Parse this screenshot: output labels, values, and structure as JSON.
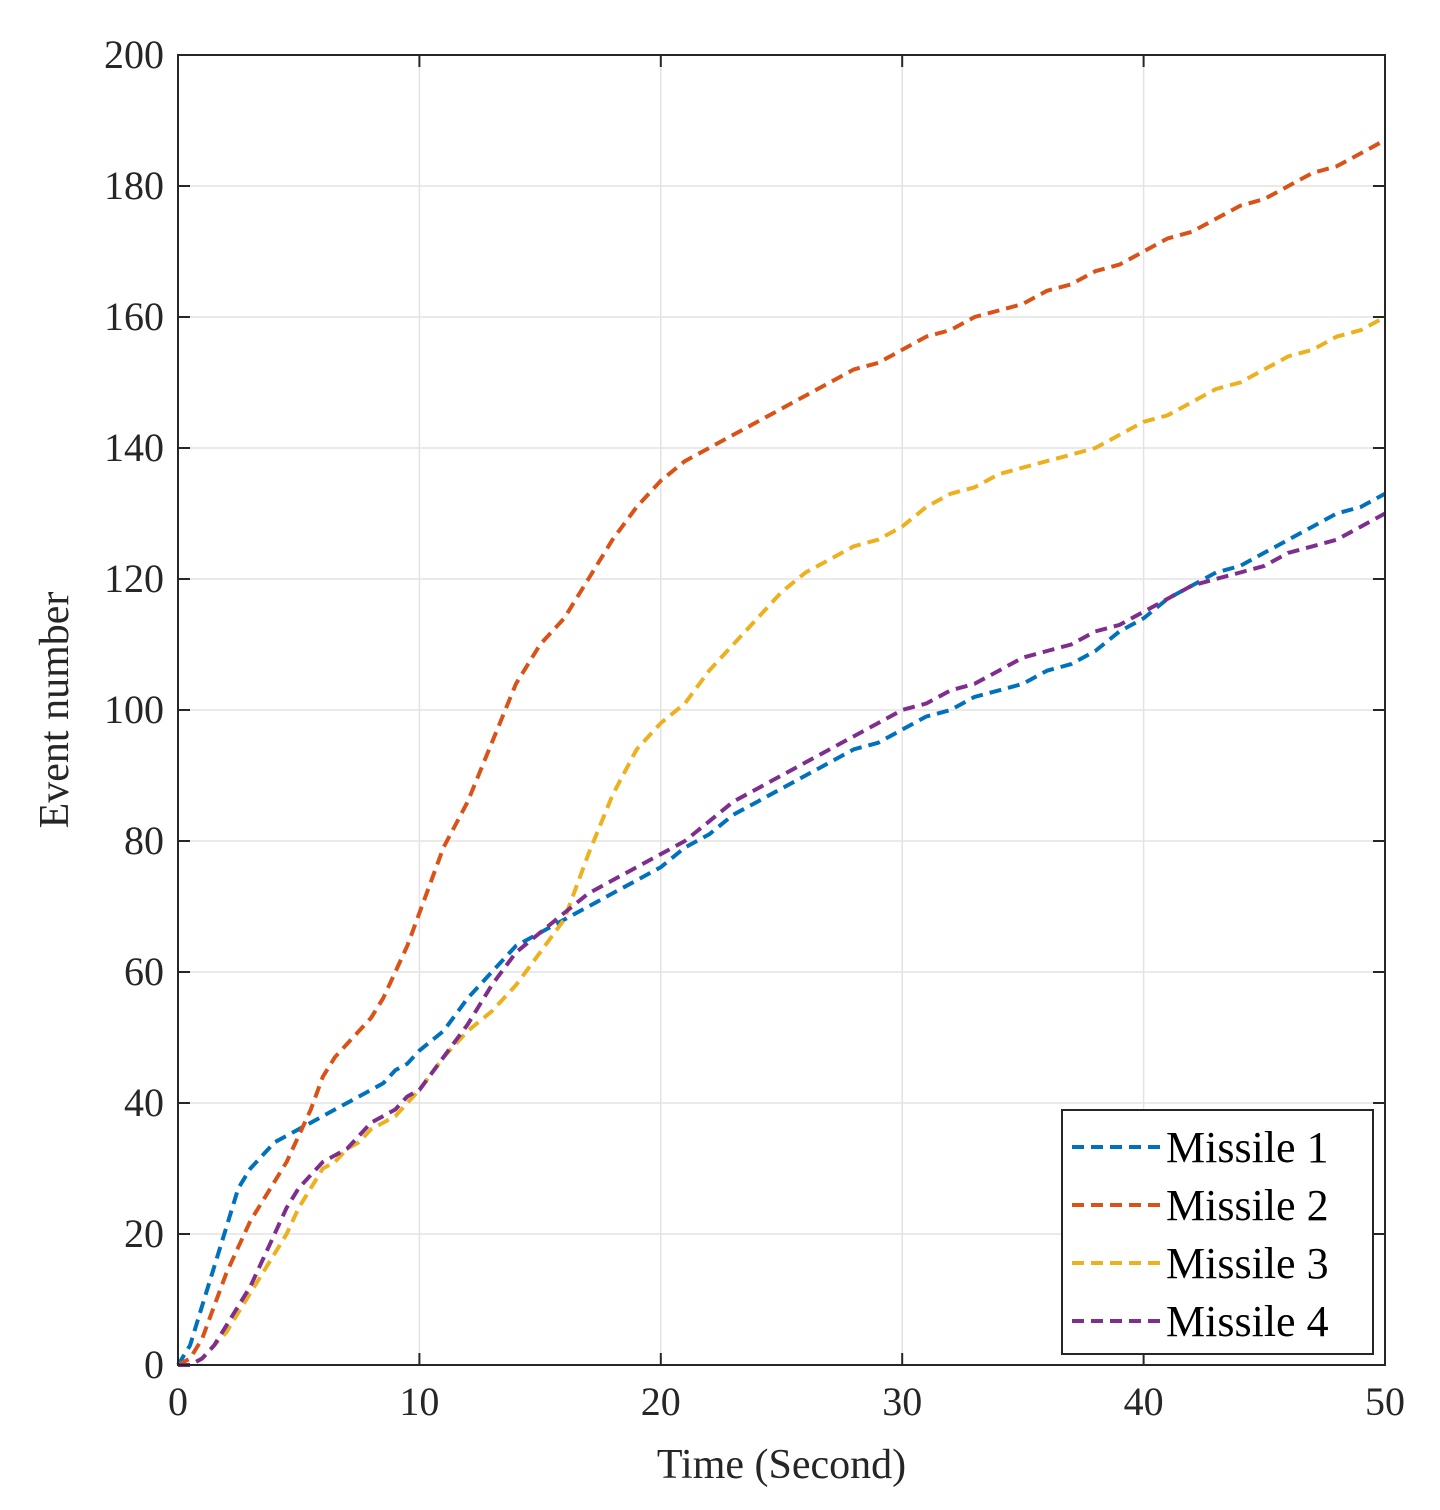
{
  "chart_data": {
    "type": "line",
    "title": "",
    "xlabel": "Time (Second)",
    "ylabel": "Event number",
    "xlim": [
      0,
      50
    ],
    "ylim": [
      0,
      200
    ],
    "xticks": [
      0,
      10,
      20,
      30,
      40,
      50
    ],
    "yticks": [
      0,
      20,
      40,
      60,
      80,
      100,
      120,
      140,
      160,
      180,
      200
    ],
    "grid": true,
    "legend_position": "bottom-right",
    "line_style": "dashed",
    "series": [
      {
        "name": "Missile 1",
        "color": "#0072BD",
        "x": [
          0,
          0.5,
          1,
          1.5,
          2,
          2.5,
          3,
          3.5,
          4,
          4.5,
          5,
          5.5,
          6,
          6.5,
          7,
          7.5,
          8,
          8.5,
          9,
          9.5,
          10,
          11,
          12,
          13,
          14,
          15,
          16,
          17,
          18,
          19,
          20,
          21,
          22,
          23,
          24,
          25,
          26,
          27,
          28,
          29,
          30,
          31,
          32,
          33,
          34,
          35,
          36,
          37,
          38,
          39,
          40,
          41,
          42,
          43,
          44,
          45,
          46,
          47,
          48,
          49,
          50
        ],
        "y": [
          0,
          3,
          9,
          15,
          21,
          27,
          30,
          32,
          34,
          35,
          36,
          37,
          38,
          39,
          40,
          41,
          42,
          43,
          45,
          46,
          48,
          51,
          56,
          60,
          64,
          66,
          68,
          70,
          72,
          74,
          76,
          79,
          81,
          84,
          86,
          88,
          90,
          92,
          94,
          95,
          97,
          99,
          100,
          102,
          103,
          104,
          106,
          107,
          109,
          112,
          114,
          117,
          119,
          121,
          122,
          124,
          126,
          128,
          130,
          131,
          133
        ]
      },
      {
        "name": "Missile 2",
        "color": "#D95319",
        "x": [
          0,
          0.5,
          1,
          1.5,
          2,
          2.5,
          3,
          3.5,
          4,
          4.5,
          5,
          5.5,
          6,
          6.5,
          7,
          7.5,
          8,
          8.5,
          9,
          9.5,
          10,
          11,
          12,
          13,
          14,
          15,
          16,
          17,
          18,
          19,
          20,
          21,
          22,
          23,
          24,
          25,
          26,
          27,
          28,
          29,
          30,
          31,
          32,
          33,
          34,
          35,
          36,
          37,
          38,
          39,
          40,
          41,
          42,
          43,
          44,
          45,
          46,
          47,
          48,
          49,
          50
        ],
        "y": [
          0,
          1,
          4,
          9,
          14,
          18,
          22,
          25,
          28,
          31,
          35,
          39,
          44,
          47,
          49,
          51,
          53,
          56,
          60,
          64,
          69,
          79,
          86,
          95,
          104,
          110,
          114,
          120,
          126,
          131,
          135,
          138,
          140,
          142,
          144,
          146,
          148,
          150,
          152,
          153,
          155,
          157,
          158,
          160,
          161,
          162,
          164,
          165,
          167,
          168,
          170,
          172,
          173,
          175,
          177,
          178,
          180,
          182,
          183,
          185,
          187
        ]
      },
      {
        "name": "Missile 3",
        "color": "#EDB120",
        "x": [
          0,
          0.5,
          1,
          1.5,
          2,
          2.5,
          3,
          3.5,
          4,
          4.5,
          5,
          5.5,
          6,
          6.5,
          7,
          7.5,
          8,
          8.5,
          9,
          9.5,
          10,
          11,
          12,
          13,
          14,
          15,
          16,
          17,
          18,
          19,
          20,
          21,
          22,
          23,
          24,
          25,
          26,
          27,
          28,
          29,
          30,
          31,
          32,
          33,
          34,
          35,
          36,
          37,
          38,
          39,
          40,
          41,
          42,
          43,
          44,
          45,
          46,
          47,
          48,
          49,
          50
        ],
        "y": [
          0,
          0,
          1,
          3,
          5,
          8,
          11,
          14,
          17,
          20,
          24,
          27,
          30,
          31,
          33,
          34,
          36,
          37,
          38,
          40,
          42,
          47,
          51,
          54,
          58,
          63,
          68,
          78,
          87,
          94,
          98,
          101,
          106,
          110,
          114,
          118,
          121,
          123,
          125,
          126,
          128,
          131,
          133,
          134,
          136,
          137,
          138,
          139,
          140,
          142,
          144,
          145,
          147,
          149,
          150,
          152,
          154,
          155,
          157,
          158,
          160
        ]
      },
      {
        "name": "Missile 4",
        "color": "#7E2F8E",
        "x": [
          0,
          0.5,
          1,
          1.5,
          2,
          2.5,
          3,
          3.5,
          4,
          4.5,
          5,
          5.5,
          6,
          6.5,
          7,
          7.5,
          8,
          8.5,
          9,
          9.5,
          10,
          11,
          12,
          13,
          14,
          15,
          16,
          17,
          18,
          19,
          20,
          21,
          22,
          23,
          24,
          25,
          26,
          27,
          28,
          29,
          30,
          31,
          32,
          33,
          34,
          35,
          36,
          37,
          38,
          39,
          40,
          41,
          42,
          43,
          44,
          45,
          46,
          47,
          48,
          49,
          50
        ],
        "y": [
          0,
          0,
          1,
          3,
          6,
          9,
          12,
          16,
          20,
          24,
          27,
          29,
          31,
          32,
          33,
          35,
          37,
          38,
          39,
          41,
          42,
          47,
          52,
          58,
          63,
          66,
          69,
          72,
          74,
          76,
          78,
          80,
          83,
          86,
          88,
          90,
          92,
          94,
          96,
          98,
          100,
          101,
          103,
          104,
          106,
          108,
          109,
          110,
          112,
          113,
          115,
          117,
          119,
          120,
          121,
          122,
          124,
          125,
          126,
          128,
          130
        ]
      }
    ]
  }
}
